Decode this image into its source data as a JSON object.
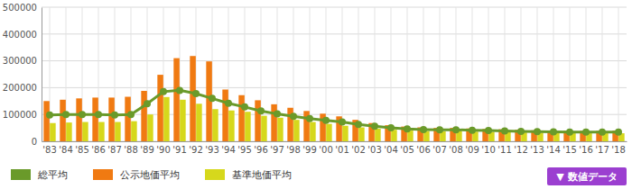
{
  "chart_data": {
    "type": "bar",
    "categories": [
      "'83",
      "'84",
      "'85",
      "'86",
      "'87",
      "'88",
      "'89",
      "'90",
      "'91",
      "'92",
      "'93",
      "'94",
      "'95",
      "'96",
      "'97",
      "'98",
      "'99",
      "'00",
      "'01",
      "'02",
      "'03",
      "'04",
      "'05",
      "'06",
      "'07",
      "'08",
      "'09",
      "'10",
      "'11",
      "'12",
      "'13",
      "'14",
      "'15",
      "'16",
      "'17",
      "'18"
    ],
    "series": [
      {
        "name": "総平均",
        "type": "line",
        "marker": "circle",
        "color": "#6a9a2a",
        "values": [
          98000,
          100000,
          100000,
          100000,
          98000,
          100000,
          140000,
          185000,
          190000,
          178000,
          160000,
          142000,
          128000,
          113000,
          102000,
          93000,
          85000,
          78000,
          72000,
          63000,
          56000,
          50000,
          46000,
          44000,
          43000,
          43000,
          41000,
          40000,
          39000,
          37000,
          36000,
          35000,
          34000,
          34000,
          34000,
          34000
        ]
      },
      {
        "name": "公示地価平均",
        "type": "bar",
        "color": "#f07a12",
        "values": [
          150000,
          155000,
          160000,
          163000,
          163000,
          166000,
          188000,
          248000,
          310000,
          318000,
          298000,
          193000,
          172000,
          153000,
          138000,
          125000,
          113000,
          103000,
          93000,
          80000,
          68000,
          60000,
          55000,
          52000,
          50000,
          50000,
          48000,
          46000,
          45000,
          43000,
          41000,
          40000,
          39000,
          39000,
          39000,
          40000
        ]
      },
      {
        "name": "基準地価平均",
        "type": "bar",
        "color": "#d6d81c",
        "values": [
          68000,
          70000,
          72000,
          72000,
          72000,
          75000,
          100000,
          165000,
          155000,
          140000,
          120000,
          115000,
          110000,
          95000,
          88000,
          80000,
          72000,
          65000,
          58000,
          52000,
          47000,
          43000,
          40000,
          38000,
          37000,
          37000,
          36000,
          35000,
          34000,
          33000,
          32000,
          31000,
          30000,
          30000,
          30000,
          30000
        ]
      }
    ],
    "ylim": [
      0,
      500000
    ],
    "yticks": [
      0,
      100000,
      200000,
      300000,
      400000,
      500000
    ],
    "grid": true,
    "legend": "bottom"
  },
  "button": {
    "label": "▼ 数値データ"
  }
}
